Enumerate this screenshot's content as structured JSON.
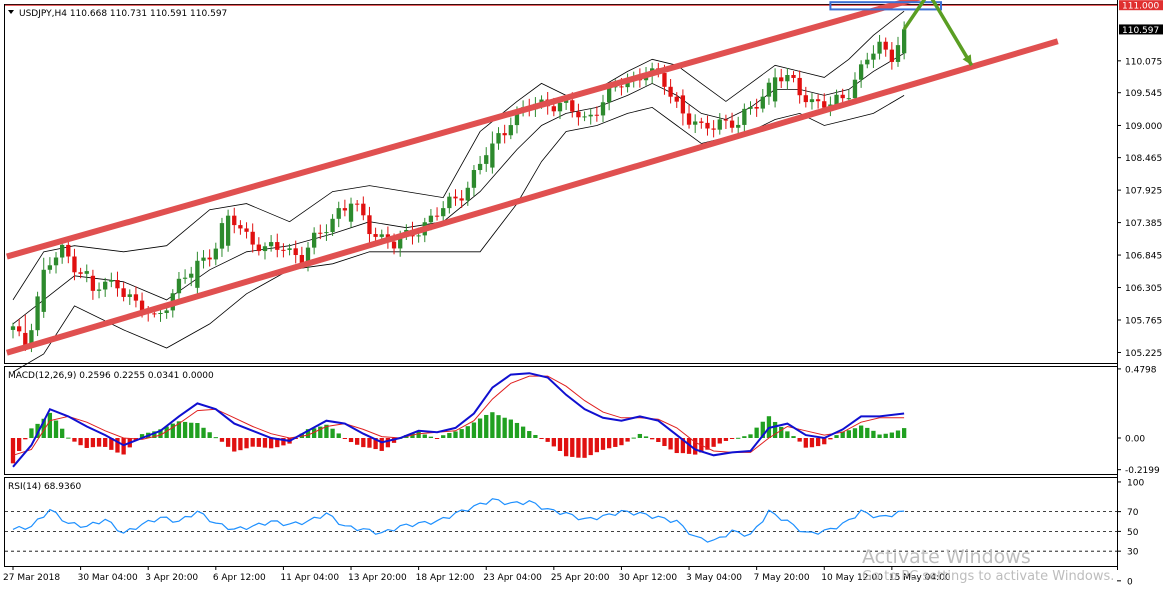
{
  "colors": {
    "bull_candle": "#2d8a2d",
    "bear_candle": "#e01010",
    "channel": "#e05050",
    "macd_line": "#1010d0",
    "signal_line": "#e02020",
    "hist_pos": "#20a020",
    "hist_neg": "#e01010",
    "rsi_line": "#1e90ff",
    "arrow": "#5a9e23",
    "zone": "#3b6fd4",
    "price_tag_red": "#e03030"
  },
  "chart_data": [
    {
      "type": "candlestick",
      "title": "USDJPY,H4  110.668 110.731 110.591 110.597",
      "symbol": "USDJPY",
      "timeframe": "H4",
      "ohlc_header": [
        110.668,
        110.731,
        110.591,
        110.597
      ],
      "ylim": [
        105.05,
        111.02
      ],
      "y_ticks": [
        "111.000",
        "110.597",
        "110.075",
        "109.545",
        "109.000",
        "108.465",
        "107.925",
        "107.385",
        "106.845",
        "106.305",
        "105.765",
        "105.225"
      ],
      "highlighted_price": "111.000",
      "current_price": "110.597",
      "x_tick_labels": [
        "27 Mar 2018",
        "30 Mar 04:00",
        "3 Apr 20:00",
        "6 Apr 12:00",
        "11 Apr 04:00",
        "13 Apr 20:00",
        "18 Apr 12:00",
        "23 Apr 04:00",
        "25 Apr 20:00",
        "30 Apr 12:00",
        "3 May 04:00",
        "7 May 20:00",
        "10 May 12:00",
        "15 May 04:00"
      ],
      "x_range": [
        0,
        144
      ],
      "x_tick_positions": [
        0,
        11,
        22,
        33,
        44,
        55,
        66,
        77,
        88,
        99,
        110,
        121,
        132,
        143
      ],
      "close_anchors": [
        [
          0,
          105.6
        ],
        [
          2,
          105.3
        ],
        [
          5,
          106.6
        ],
        [
          8,
          106.9
        ],
        [
          11,
          106.6
        ],
        [
          14,
          106.3
        ],
        [
          17,
          106.4
        ],
        [
          20,
          106.0
        ],
        [
          23,
          105.8
        ],
        [
          26,
          106.2
        ],
        [
          30,
          106.7
        ],
        [
          33,
          107.0
        ],
        [
          35,
          107.5
        ],
        [
          38,
          107.2
        ],
        [
          41,
          106.9
        ],
        [
          44,
          107.0
        ],
        [
          47,
          106.8
        ],
        [
          50,
          107.2
        ],
        [
          53,
          107.6
        ],
        [
          55,
          107.7
        ],
        [
          58,
          107.3
        ],
        [
          62,
          107.0
        ],
        [
          66,
          107.3
        ],
        [
          70,
          107.6
        ],
        [
          74,
          108.0
        ],
        [
          78,
          108.7
        ],
        [
          81,
          109.1
        ],
        [
          84,
          109.3
        ],
        [
          87,
          109.4
        ],
        [
          90,
          109.3
        ],
        [
          93,
          109.1
        ],
        [
          96,
          109.4
        ],
        [
          99,
          109.7
        ],
        [
          103,
          109.9
        ],
        [
          106,
          109.7
        ],
        [
          109,
          109.2
        ],
        [
          112,
          108.9
        ],
        [
          115,
          109.1
        ],
        [
          118,
          109.0
        ],
        [
          121,
          109.4
        ],
        [
          124,
          109.8
        ],
        [
          127,
          109.7
        ],
        [
          130,
          109.4
        ],
        [
          133,
          109.3
        ],
        [
          136,
          109.6
        ],
        [
          139,
          110.1
        ],
        [
          141,
          110.3
        ],
        [
          143,
          110.2
        ],
        [
          145,
          110.6
        ]
      ],
      "candles": [
        {
          "x": 2,
          "open": 105.55,
          "high": 105.85,
          "low": 105.25,
          "close": 105.35
        },
        {
          "x": 5,
          "open": 105.9,
          "high": 106.8,
          "low": 105.8,
          "close": 106.6
        },
        {
          "x": 13,
          "open": 106.5,
          "high": 106.6,
          "low": 106.1,
          "close": 106.25
        },
        {
          "x": 30,
          "open": 106.3,
          "high": 106.9,
          "low": 106.2,
          "close": 106.75
        },
        {
          "x": 35,
          "open": 107.0,
          "high": 107.6,
          "low": 106.9,
          "close": 107.5
        },
        {
          "x": 55,
          "open": 107.4,
          "high": 107.8,
          "low": 107.3,
          "close": 107.7
        },
        {
          "x": 78,
          "open": 108.3,
          "high": 108.9,
          "low": 108.2,
          "close": 108.7
        },
        {
          "x": 109,
          "open": 109.5,
          "high": 109.6,
          "low": 109.0,
          "close": 109.2
        },
        {
          "x": 124,
          "open": 109.4,
          "high": 109.95,
          "low": 109.3,
          "close": 109.8
        },
        {
          "x": 145,
          "open": 110.2,
          "high": 110.73,
          "low": 110.1,
          "close": 110.6
        }
      ],
      "bollinger": {
        "upper": [
          [
            0,
            106.1
          ],
          [
            5,
            106.9
          ],
          [
            10,
            107.0
          ],
          [
            18,
            106.9
          ],
          [
            25,
            107.0
          ],
          [
            32,
            107.6
          ],
          [
            38,
            107.7
          ],
          [
            45,
            107.4
          ],
          [
            52,
            107.9
          ],
          [
            58,
            108.0
          ],
          [
            64,
            107.9
          ],
          [
            70,
            107.8
          ],
          [
            76,
            108.9
          ],
          [
            82,
            109.4
          ],
          [
            86,
            109.7
          ],
          [
            90,
            109.5
          ],
          [
            95,
            109.6
          ],
          [
            100,
            109.9
          ],
          [
            104,
            110.1
          ],
          [
            108,
            110.0
          ],
          [
            112,
            109.7
          ],
          [
            116,
            109.4
          ],
          [
            120,
            109.7
          ],
          [
            124,
            110.0
          ],
          [
            128,
            109.9
          ],
          [
            132,
            109.8
          ],
          [
            136,
            110.1
          ],
          [
            140,
            110.5
          ],
          [
            145,
            110.9
          ]
        ],
        "middle": [
          [
            0,
            105.7
          ],
          [
            5,
            106.1
          ],
          [
            10,
            106.5
          ],
          [
            18,
            106.4
          ],
          [
            25,
            106.1
          ],
          [
            32,
            106.6
          ],
          [
            38,
            106.9
          ],
          [
            45,
            107.0
          ],
          [
            52,
            107.2
          ],
          [
            58,
            107.4
          ],
          [
            64,
            107.3
          ],
          [
            70,
            107.4
          ],
          [
            76,
            107.9
          ],
          [
            82,
            108.6
          ],
          [
            86,
            109.0
          ],
          [
            90,
            109.2
          ],
          [
            95,
            109.3
          ],
          [
            100,
            109.5
          ],
          [
            104,
            109.7
          ],
          [
            108,
            109.5
          ],
          [
            112,
            109.2
          ],
          [
            116,
            109.1
          ],
          [
            120,
            109.3
          ],
          [
            124,
            109.6
          ],
          [
            128,
            109.6
          ],
          [
            132,
            109.5
          ],
          [
            136,
            109.6
          ],
          [
            140,
            109.9
          ],
          [
            145,
            110.2
          ]
        ],
        "lower": [
          [
            0,
            104.9
          ],
          [
            5,
            105.2
          ],
          [
            10,
            106.0
          ],
          [
            18,
            105.6
          ],
          [
            25,
            105.3
          ],
          [
            32,
            105.7
          ],
          [
            38,
            106.2
          ],
          [
            45,
            106.6
          ],
          [
            52,
            106.7
          ],
          [
            58,
            106.9
          ],
          [
            64,
            106.9
          ],
          [
            70,
            106.9
          ],
          [
            76,
            106.9
          ],
          [
            82,
            107.7
          ],
          [
            86,
            108.4
          ],
          [
            90,
            108.9
          ],
          [
            95,
            109.0
          ],
          [
            100,
            109.2
          ],
          [
            104,
            109.3
          ],
          [
            108,
            109.0
          ],
          [
            112,
            108.7
          ],
          [
            116,
            108.8
          ],
          [
            120,
            108.9
          ],
          [
            124,
            109.1
          ],
          [
            128,
            109.2
          ],
          [
            132,
            109.0
          ],
          [
            136,
            109.1
          ],
          [
            140,
            109.2
          ],
          [
            145,
            109.5
          ]
        ]
      },
      "channel_upper": [
        [
          -1,
          106.82
        ],
        [
          150,
          111.2
        ]
      ],
      "channel_lower": [
        [
          -1,
          105.22
        ],
        [
          170,
          110.4
        ]
      ],
      "zone": {
        "x": [
          133,
          151
        ],
        "y": [
          110.93,
          111.05
        ]
      },
      "arrow_path": [
        [
          145,
          110.6
        ],
        [
          149,
          111.2
        ],
        [
          156,
          110.0
        ]
      ]
    },
    {
      "type": "line",
      "title": "MACD(12,26,9) 0.2596 0.2255 0.0341 0.0000",
      "ylim": [
        -0.25,
        0.5
      ],
      "y_ticks": [
        "0.4798",
        "0.00",
        "-0.2199"
      ],
      "x_range": [
        0,
        144
      ],
      "series": [
        {
          "name": "MACD",
          "x": [
            0,
            3,
            6,
            9,
            12,
            15,
            18,
            21,
            24,
            27,
            30,
            33,
            36,
            39,
            42,
            45,
            48,
            51,
            54,
            57,
            60,
            63,
            66,
            69,
            72,
            75,
            78,
            81,
            84,
            87,
            90,
            93,
            96,
            99,
            102,
            105,
            108,
            111,
            114,
            117,
            120,
            123,
            126,
            129,
            132,
            135,
            138,
            141,
            145
          ],
          "values": [
            -0.2,
            -0.05,
            0.2,
            0.15,
            0.08,
            0.02,
            -0.05,
            0.0,
            0.05,
            0.15,
            0.24,
            0.2,
            0.1,
            0.05,
            0.0,
            -0.02,
            0.05,
            0.12,
            0.1,
            0.03,
            -0.03,
            0.0,
            0.05,
            0.04,
            0.07,
            0.17,
            0.35,
            0.44,
            0.45,
            0.42,
            0.3,
            0.2,
            0.14,
            0.12,
            0.15,
            0.12,
            0.02,
            -0.08,
            -0.12,
            -0.1,
            -0.09,
            0.07,
            0.1,
            0.02,
            0.0,
            0.06,
            0.15,
            0.15,
            0.17
          ]
        },
        {
          "name": "Signal",
          "x": [
            0,
            3,
            6,
            9,
            12,
            15,
            18,
            21,
            24,
            27,
            30,
            33,
            36,
            39,
            42,
            45,
            48,
            51,
            54,
            57,
            60,
            63,
            66,
            69,
            72,
            75,
            78,
            81,
            84,
            87,
            90,
            93,
            96,
            99,
            102,
            105,
            108,
            111,
            114,
            117,
            120,
            123,
            126,
            129,
            132,
            135,
            138,
            141,
            145
          ],
          "values": [
            -0.12,
            -0.08,
            0.12,
            0.15,
            0.11,
            0.05,
            0.0,
            -0.01,
            0.02,
            0.1,
            0.19,
            0.2,
            0.14,
            0.08,
            0.03,
            0.0,
            0.02,
            0.08,
            0.1,
            0.06,
            0.01,
            0.0,
            0.03,
            0.04,
            0.05,
            0.12,
            0.27,
            0.38,
            0.43,
            0.43,
            0.36,
            0.26,
            0.18,
            0.14,
            0.14,
            0.13,
            0.07,
            -0.03,
            -0.09,
            -0.1,
            -0.1,
            0.0,
            0.08,
            0.05,
            0.02,
            0.04,
            0.11,
            0.14,
            0.14
          ]
        }
      ]
    },
    {
      "type": "line",
      "title": "RSI(14) 68.9360",
      "ylim": [
        15,
        105
      ],
      "y_ticks": [
        "100",
        "70",
        "50",
        "30",
        "0"
      ],
      "levels": [
        70,
        50,
        30
      ],
      "x_range": [
        0,
        144
      ],
      "series": [
        {
          "name": "RSI",
          "x": [
            0,
            3,
            6,
            9,
            12,
            15,
            18,
            21,
            24,
            27,
            30,
            33,
            36,
            39,
            42,
            45,
            48,
            51,
            54,
            57,
            60,
            63,
            66,
            69,
            72,
            75,
            78,
            81,
            84,
            87,
            90,
            93,
            96,
            99,
            102,
            105,
            108,
            111,
            114,
            117,
            120,
            123,
            126,
            129,
            132,
            135,
            138,
            141,
            145
          ],
          "values": [
            52,
            55,
            72,
            58,
            55,
            62,
            48,
            57,
            64,
            60,
            70,
            58,
            52,
            55,
            60,
            57,
            60,
            68,
            55,
            52,
            48,
            55,
            58,
            60,
            68,
            75,
            82,
            78,
            80,
            72,
            68,
            62,
            65,
            70,
            68,
            64,
            60,
            44,
            40,
            50,
            46,
            70,
            60,
            48,
            50,
            57,
            70,
            64,
            70
          ]
        }
      ]
    }
  ],
  "watermark": {
    "title": "Activate Windows",
    "subtitle": "Go to PC settings to activate Windows."
  }
}
